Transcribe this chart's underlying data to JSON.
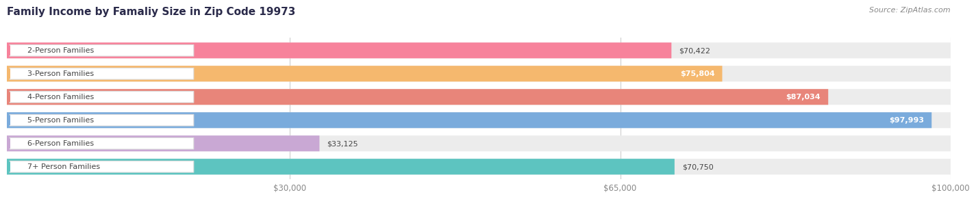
{
  "title": "Family Income by Famaliy Size in Zip Code 19973",
  "source": "Source: ZipAtlas.com",
  "categories": [
    "2-Person Families",
    "3-Person Families",
    "4-Person Families",
    "5-Person Families",
    "6-Person Families",
    "7+ Person Families"
  ],
  "values": [
    70422,
    75804,
    87034,
    97993,
    33125,
    70750
  ],
  "bar_colors": [
    "#F7829B",
    "#F5B86E",
    "#E8857A",
    "#7AABDC",
    "#C9A8D4",
    "#5DC4C0"
  ],
  "bar_bg_colors": [
    "#EEE8EE",
    "#EEE8EE",
    "#EEE8EE",
    "#EEE8EE",
    "#EEE8EE",
    "#EEE8EE"
  ],
  "value_labels": [
    "$70,422",
    "$75,804",
    "$87,034",
    "$97,993",
    "$33,125",
    "$70,750"
  ],
  "label_inside": [
    false,
    true,
    true,
    true,
    false,
    false
  ],
  "x_max": 100000,
  "x_ticks": [
    30000,
    65000,
    100000
  ],
  "x_tick_labels": [
    "$30,000",
    "$65,000",
    "$100,000"
  ],
  "background_color": "#ffffff",
  "title_color": "#2a2a4a",
  "source_color": "#888888"
}
